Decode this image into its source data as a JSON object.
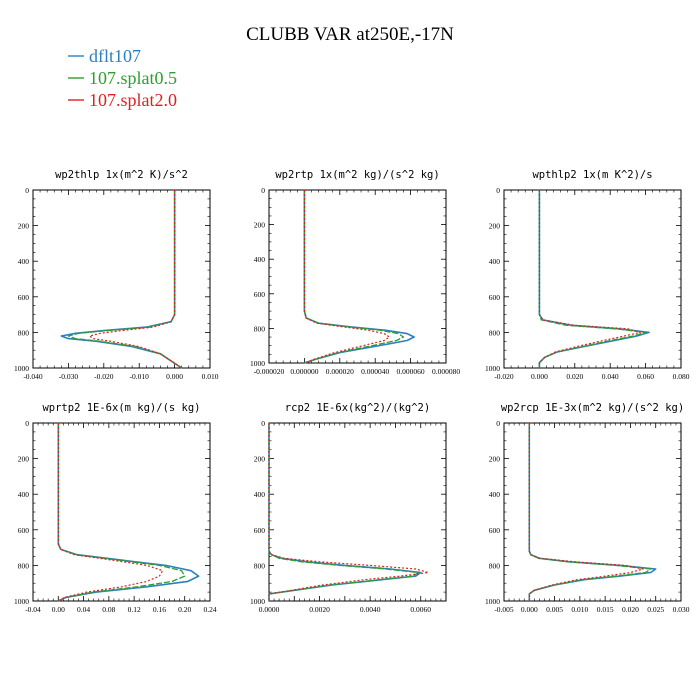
{
  "figure": {
    "title": "CLUBB VAR at250E,-17N",
    "legend": [
      {
        "label": "dflt107",
        "color": "#2e7fc0"
      },
      {
        "label": "107.splat0.5",
        "color": "#2ca02c"
      },
      {
        "label": "107.splat2.0",
        "color": "#e02020"
      }
    ]
  },
  "chart_data": [
    {
      "type": "line",
      "title": "wp2thlp   1x(m^2 K)/s^2",
      "xlim": [
        -0.04,
        0.01
      ],
      "ylim": [
        1000,
        0
      ],
      "y_inverted": true,
      "grid": false,
      "xticks": [
        -0.04,
        -0.03,
        -0.02,
        -0.01,
        0.0,
        0.01
      ],
      "xtick_labels": [
        "-0.040",
        "-0.030",
        "-0.020",
        "-0.010",
        "0.000",
        "0.010"
      ],
      "yticks": [
        0,
        200,
        400,
        600,
        800,
        1000
      ],
      "ytick_labels": [
        "0",
        "200",
        "400",
        "600",
        "800",
        "1000"
      ],
      "series": [
        {
          "name": "dflt107",
          "y": [
            0,
            700,
            740,
            770,
            790,
            805,
            820,
            835,
            850,
            880,
            920,
            960,
            1000
          ],
          "x": [
            0.0,
            0.0,
            -0.001,
            -0.008,
            -0.02,
            -0.028,
            -0.032,
            -0.03,
            -0.022,
            -0.012,
            -0.004,
            -0.001,
            0.002
          ]
        },
        {
          "name": "107.splat0.5",
          "y": [
            0,
            700,
            740,
            770,
            790,
            805,
            820,
            835,
            850,
            880,
            920,
            960,
            1000
          ],
          "x": [
            0.0,
            0.0,
            -0.001,
            -0.007,
            -0.019,
            -0.027,
            -0.03,
            -0.028,
            -0.021,
            -0.011,
            -0.004,
            -0.001,
            0.002
          ]
        },
        {
          "name": "107.splat2.0",
          "y": [
            0,
            700,
            740,
            770,
            790,
            805,
            820,
            835,
            850,
            880,
            920,
            960,
            1000
          ],
          "x": [
            0.0,
            0.0,
            -0.001,
            -0.006,
            -0.015,
            -0.021,
            -0.024,
            -0.023,
            -0.018,
            -0.01,
            -0.004,
            -0.001,
            0.002
          ]
        }
      ]
    },
    {
      "type": "line",
      "title": "wp2rtp   1x(m^2 kg)/(s^2 kg)",
      "xlim": [
        -2e-05,
        8e-05
      ],
      "ylim": [
        1000,
        0
      ],
      "y_inverted": true,
      "grid": false,
      "xticks": [
        -2e-05,
        0.0,
        2e-05,
        4e-05,
        6e-05,
        8e-05
      ],
      "xtick_labels": [
        "-0.000020",
        "0.000000",
        "0.000020",
        "0.000040",
        "0.000060",
        "0.000080"
      ],
      "yticks": [
        0,
        200,
        400,
        600,
        800,
        1000
      ],
      "ytick_labels": [
        "0",
        "200",
        "400",
        "600",
        "800",
        "1000"
      ],
      "series": [
        {
          "name": "dflt107",
          "y": [
            0,
            700,
            740,
            770,
            790,
            810,
            830,
            850,
            870,
            900,
            940,
            980,
            1000
          ],
          "x": [
            0.0,
            0.0,
            1e-06,
            8e-06,
            2.5e-05,
            4.5e-05,
            5.8e-05,
            6.2e-05,
            5.8e-05,
            4.2e-05,
            2e-05,
            6e-06,
            0.0
          ]
        },
        {
          "name": "107.splat0.5",
          "y": [
            0,
            700,
            740,
            770,
            790,
            810,
            830,
            850,
            870,
            900,
            940,
            980,
            1000
          ],
          "x": [
            0.0,
            0.0,
            1e-06,
            8e-06,
            2.4e-05,
            4.2e-05,
            5.3e-05,
            5.6e-05,
            5.2e-05,
            3.8e-05,
            1.9e-05,
            6e-06,
            0.0
          ]
        },
        {
          "name": "107.splat2.0",
          "y": [
            0,
            700,
            740,
            770,
            790,
            810,
            830,
            850,
            870,
            900,
            940,
            980,
            1000
          ],
          "x": [
            0.0,
            0.0,
            1e-06,
            7e-06,
            2.1e-05,
            3.6e-05,
            4.5e-05,
            4.8e-05,
            4.5e-05,
            3.3e-05,
            1.7e-05,
            5e-06,
            0.0
          ]
        }
      ]
    },
    {
      "type": "line",
      "title": "wpthlp2   1x(m K^2)/s",
      "xlim": [
        -0.02,
        0.08
      ],
      "ylim": [
        1000,
        0
      ],
      "y_inverted": true,
      "grid": false,
      "xticks": [
        -0.02,
        0.0,
        0.02,
        0.04,
        0.06,
        0.08
      ],
      "xtick_labels": [
        "-0.020",
        "0.000",
        "0.020",
        "0.040",
        "0.060",
        "0.080"
      ],
      "yticks": [
        0,
        200,
        400,
        600,
        800,
        1000
      ],
      "ytick_labels": [
        "0",
        "200",
        "400",
        "600",
        "800",
        "1000"
      ],
      "series": [
        {
          "name": "dflt107",
          "y": [
            0,
            700,
            730,
            760,
            780,
            800,
            820,
            850,
            880,
            910,
            940,
            970,
            1000
          ],
          "x": [
            0.0,
            0.0,
            0.002,
            0.018,
            0.045,
            0.062,
            0.055,
            0.04,
            0.025,
            0.01,
            0.003,
            0.0,
            0.0
          ]
        },
        {
          "name": "107.splat0.5",
          "y": [
            0,
            700,
            730,
            760,
            780,
            800,
            820,
            850,
            880,
            910,
            940,
            970,
            1000
          ],
          "x": [
            0.0,
            0.0,
            0.001,
            0.015,
            0.043,
            0.06,
            0.053,
            0.038,
            0.024,
            0.01,
            0.003,
            0.0,
            0.0
          ]
        },
        {
          "name": "107.splat2.0",
          "y": [
            0,
            700,
            730,
            760,
            780,
            800,
            820,
            850,
            880,
            910,
            940,
            970,
            1000
          ],
          "x": [
            0.0,
            0.0,
            0.002,
            0.02,
            0.05,
            0.057,
            0.048,
            0.034,
            0.021,
            0.009,
            0.003,
            0.0,
            0.0
          ]
        }
      ]
    },
    {
      "type": "line",
      "title": "wprtp2   1E-6x(m kg)/(s kg)",
      "xlim": [
        -0.04,
        0.24
      ],
      "ylim": [
        1000,
        0
      ],
      "y_inverted": true,
      "grid": false,
      "xticks": [
        -0.04,
        0.0,
        0.04,
        0.08,
        0.12,
        0.16,
        0.2,
        0.24
      ],
      "xtick_labels": [
        "-0.04",
        "0.00",
        "0.04",
        "0.08",
        "0.12",
        "0.16",
        "0.20",
        "0.24"
      ],
      "yticks": [
        0,
        200,
        400,
        600,
        800,
        1000
      ],
      "ytick_labels": [
        "0",
        "200",
        "400",
        "600",
        "800",
        "1000"
      ],
      "series": [
        {
          "name": "dflt107",
          "y": [
            0,
            680,
            710,
            740,
            770,
            800,
            830,
            860,
            890,
            920,
            950,
            980,
            1000
          ],
          "x": [
            0.0,
            0.0,
            0.004,
            0.03,
            0.1,
            0.17,
            0.21,
            0.222,
            0.205,
            0.14,
            0.06,
            0.012,
            0.0
          ]
        },
        {
          "name": "107.splat0.5",
          "y": [
            0,
            680,
            710,
            740,
            770,
            800,
            830,
            860,
            890,
            920,
            950,
            980,
            1000
          ],
          "x": [
            0.0,
            0.0,
            0.004,
            0.028,
            0.095,
            0.16,
            0.195,
            0.2,
            0.18,
            0.125,
            0.055,
            0.011,
            0.0
          ]
        },
        {
          "name": "107.splat2.0",
          "y": [
            0,
            680,
            710,
            740,
            770,
            800,
            830,
            860,
            890,
            920,
            950,
            980,
            1000
          ],
          "x": [
            0.0,
            0.0,
            0.004,
            0.025,
            0.085,
            0.14,
            0.165,
            0.16,
            0.14,
            0.1,
            0.045,
            0.01,
            0.0
          ]
        }
      ]
    },
    {
      "type": "line",
      "title": "rcp2   1E-6x(kg^2)/(kg^2)",
      "xlim": [
        0.0,
        0.007
      ],
      "ylim": [
        1000,
        0
      ],
      "y_inverted": true,
      "grid": false,
      "xticks": [
        0.0,
        0.001,
        0.002,
        0.003,
        0.004,
        0.005,
        0.006,
        0.007
      ],
      "xtick_labels": [
        "0.0000",
        "",
        "0.0020",
        "",
        "0.0040",
        "",
        "0.0060",
        ""
      ],
      "yticks": [
        0,
        200,
        400,
        600,
        800,
        1000
      ],
      "ytick_labels": [
        "0",
        "200",
        "400",
        "600",
        "800",
        "1000"
      ],
      "series": [
        {
          "name": "dflt107",
          "y": [
            0,
            720,
            740,
            760,
            780,
            800,
            820,
            840,
            860,
            880,
            910,
            940,
            960,
            1000
          ],
          "x": [
            0.0,
            0.0,
            0.0001,
            0.0005,
            0.0015,
            0.003,
            0.0048,
            0.006,
            0.0058,
            0.0045,
            0.0025,
            0.001,
            0.0,
            0.0
          ]
        },
        {
          "name": "107.splat0.5",
          "y": [
            0,
            720,
            740,
            760,
            780,
            800,
            820,
            840,
            860,
            880,
            910,
            940,
            960,
            1000
          ],
          "x": [
            0.0,
            0.0,
            0.0001,
            0.0004,
            0.0013,
            0.0028,
            0.0046,
            0.0059,
            0.0057,
            0.0044,
            0.0024,
            0.001,
            0.0,
            0.0
          ]
        },
        {
          "name": "107.splat2.0",
          "y": [
            0,
            720,
            740,
            760,
            780,
            800,
            820,
            840,
            860,
            880,
            910,
            940,
            960,
            1000
          ],
          "x": [
            0.0,
            0.0,
            0.0001,
            0.0006,
            0.002,
            0.004,
            0.0058,
            0.0063,
            0.0052,
            0.0038,
            0.0021,
            0.0009,
            0.0,
            0.0
          ]
        }
      ]
    },
    {
      "type": "line",
      "title": "wp2rcp   1E-3x(m^2 kg)/(s^2 kg)",
      "xlim": [
        -0.005,
        0.03
      ],
      "ylim": [
        1000,
        0
      ],
      "y_inverted": true,
      "grid": false,
      "xticks": [
        -0.005,
        0.0,
        0.005,
        0.01,
        0.015,
        0.02,
        0.025,
        0.03
      ],
      "xtick_labels": [
        "-0.005",
        "0.000",
        "0.005",
        "0.010",
        "0.015",
        "0.020",
        "0.025",
        "0.030"
      ],
      "yticks": [
        0,
        200,
        400,
        600,
        800,
        1000
      ],
      "ytick_labels": [
        "0",
        "200",
        "400",
        "600",
        "800",
        "1000"
      ],
      "series": [
        {
          "name": "dflt107",
          "y": [
            0,
            720,
            740,
            760,
            780,
            800,
            820,
            840,
            860,
            880,
            910,
            940,
            960,
            1000
          ],
          "x": [
            0.0,
            0.0,
            0.0003,
            0.002,
            0.008,
            0.018,
            0.025,
            0.024,
            0.018,
            0.011,
            0.005,
            0.001,
            0.0,
            0.0
          ]
        },
        {
          "name": "107.splat0.5",
          "y": [
            0,
            720,
            740,
            760,
            780,
            800,
            820,
            840,
            860,
            880,
            910,
            940,
            960,
            1000
          ],
          "x": [
            0.0,
            0.0,
            0.0003,
            0.0018,
            0.0075,
            0.017,
            0.024,
            0.023,
            0.017,
            0.0105,
            0.0048,
            0.001,
            0.0,
            0.0
          ]
        },
        {
          "name": "107.splat2.0",
          "y": [
            0,
            720,
            740,
            760,
            780,
            800,
            820,
            840,
            860,
            880,
            910,
            940,
            960,
            1000
          ],
          "x": [
            0.0,
            0.0,
            0.0003,
            0.0022,
            0.009,
            0.019,
            0.0225,
            0.02,
            0.015,
            0.0095,
            0.0045,
            0.001,
            0.0,
            0.0
          ]
        }
      ]
    }
  ]
}
